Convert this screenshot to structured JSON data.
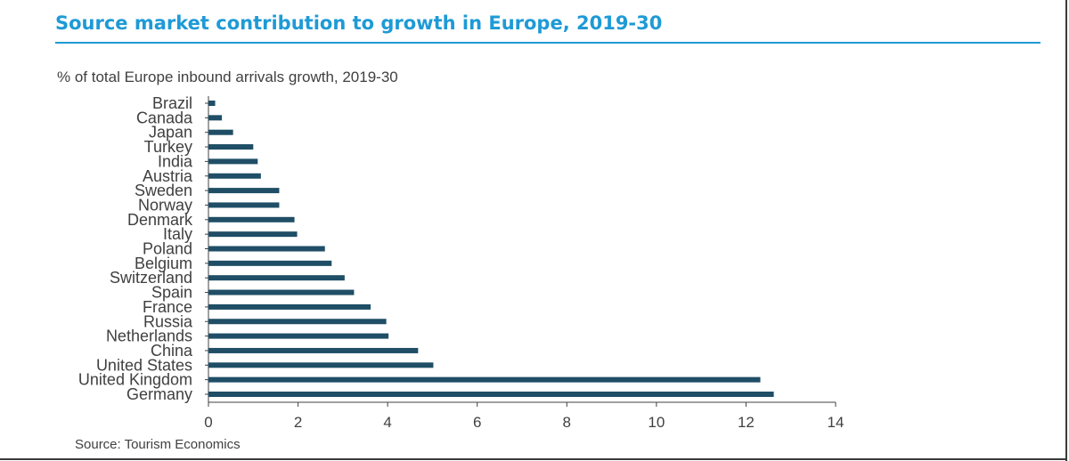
{
  "header": {
    "title": "Source market contribution to growth in Europe, 2019-30"
  },
  "footer": {
    "source": "Source: Tourism Economics"
  },
  "colors": {
    "title": "#1e9ad6",
    "bar": "#1f4e66",
    "axis": "#404040"
  },
  "chart_data": {
    "type": "bar",
    "orientation": "horizontal",
    "title": "% of total Europe inbound arrivals growth, 2019-30",
    "xlabel": "",
    "ylabel": "",
    "categories": [
      "Brazil",
      "Canada",
      "Japan",
      "Turkey",
      "India",
      "Austria",
      "Sweden",
      "Norway",
      "Denmark",
      "Italy",
      "Poland",
      "Belgium",
      "Switzerland",
      "Spain",
      "France",
      "Russia",
      "Netherlands",
      "China",
      "United States",
      "United Kingdom",
      "Germany"
    ],
    "values": [
      0.15,
      0.3,
      0.55,
      1.0,
      1.1,
      1.17,
      1.58,
      1.58,
      1.92,
      1.98,
      2.6,
      2.75,
      3.04,
      3.25,
      3.62,
      3.97,
      4.02,
      4.68,
      5.02,
      12.32,
      12.62
    ],
    "xlim": [
      0,
      14
    ],
    "xticks": [
      "0",
      "2",
      "4",
      "6",
      "8",
      "10",
      "12",
      "14"
    ],
    "grid": false,
    "legend": "none"
  }
}
